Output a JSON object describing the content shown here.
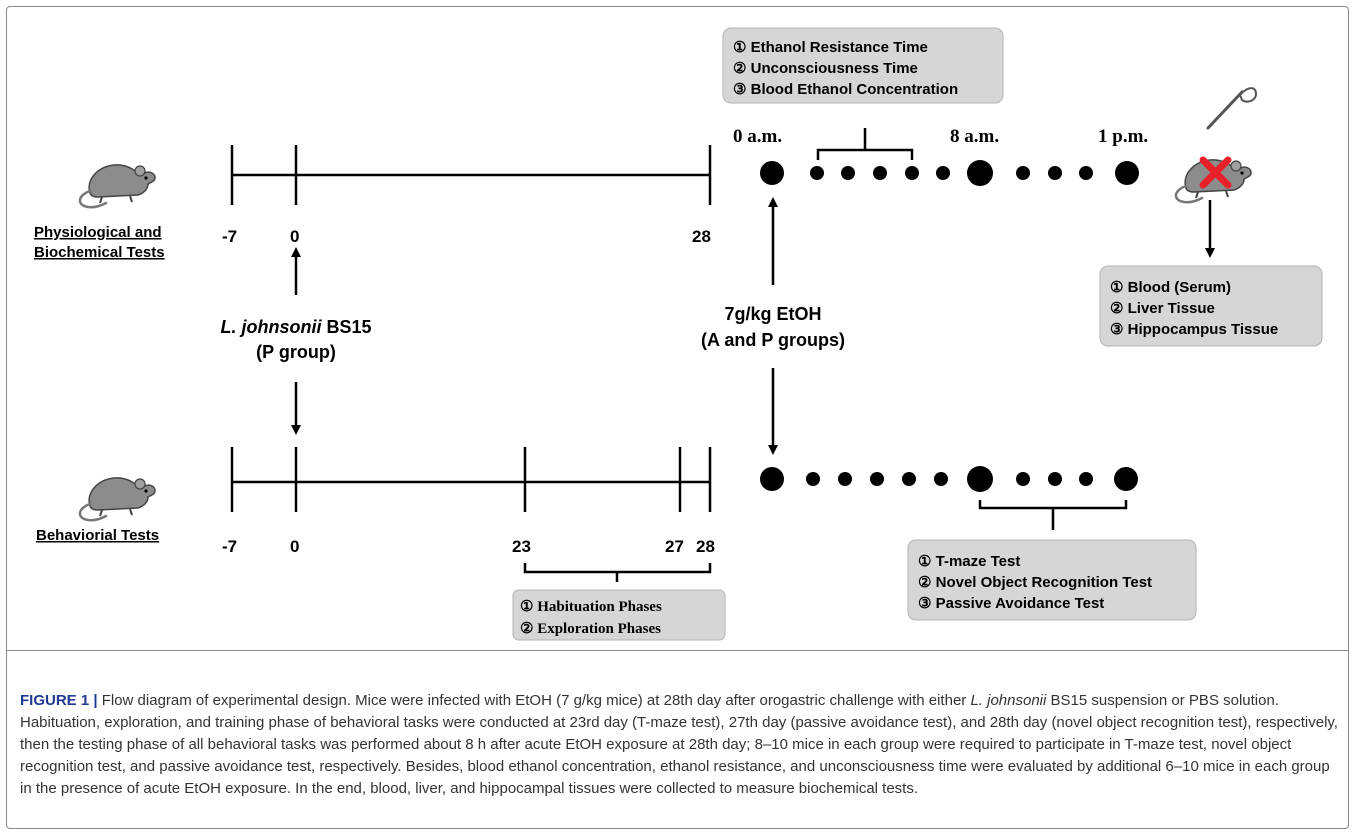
{
  "groups": {
    "top_title_1": "Physiological and",
    "top_title_2": "Biochemical Tests",
    "bottom_title": "Behaviorial Tests"
  },
  "timeline_top": {
    "ticks": [
      "-7",
      "0",
      "28"
    ]
  },
  "timeline_bottom": {
    "ticks": [
      "-7",
      "0",
      "23",
      "27",
      "28"
    ]
  },
  "treatment": {
    "strain_italic": "L. johnsonii",
    "strain_rest": " BS15",
    "group": "(P group)"
  },
  "etoh": {
    "dose": "7g/kg EtOH",
    "groups": "(A and P groups)"
  },
  "times": {
    "t0": "0 a.m.",
    "t8": "8 a.m.",
    "t13": "1 p.m."
  },
  "box_ethanol": {
    "items": [
      "① Ethanol Resistance Time",
      "② Unconsciousness Time",
      "③ Blood Ethanol Concentration"
    ]
  },
  "box_tissue": {
    "items": [
      "① Blood (Serum)",
      "② Liver Tissue",
      "③ Hippocampus Tissue"
    ]
  },
  "box_behavior": {
    "items": [
      "① T-maze Test",
      "② Novel Object Recognition Test",
      "③ Passive Avoidance Test"
    ]
  },
  "box_phases": {
    "items": [
      "① Habituation Phases",
      "② Exploration Phases"
    ]
  },
  "icons": {
    "mouse": "mouse-icon",
    "scalpel": "scalpel-icon",
    "cross": "red-x-icon"
  },
  "colors": {
    "box_fill": "#d6d6d6",
    "caption_label": "#1f3a93",
    "cross": "#e8202a"
  },
  "caption": {
    "label": "FIGURE 1 |",
    "part1": " Flow diagram of experimental design. Mice were infected with EtOH (7 g/kg mice) at 28th day after orogastric challenge with either ",
    "italic": "L. johnsonii",
    "part2": " BS15 suspension or PBS solution. Habituation, exploration, and training phase of behavioral tasks were conducted at 23rd day (T-maze test), 27th day (passive avoidance test), and 28th day (novel object recognition test), respectively, then the testing phase of all behavioral tasks was performed about 8 h after acute EtOH exposure at 28th day; 8–10 mice in each group were required to participate in T-maze test, novel object recognition test, and passive avoidance test, respectively. Besides, blood ethanol concentration, ethanol resistance, and unconsciousness time were evaluated by additional 6–10 mice in each group in the presence of acute EtOH exposure. In the end, blood, liver, and hippocampal tissues were collected to measure biochemical tests."
  }
}
